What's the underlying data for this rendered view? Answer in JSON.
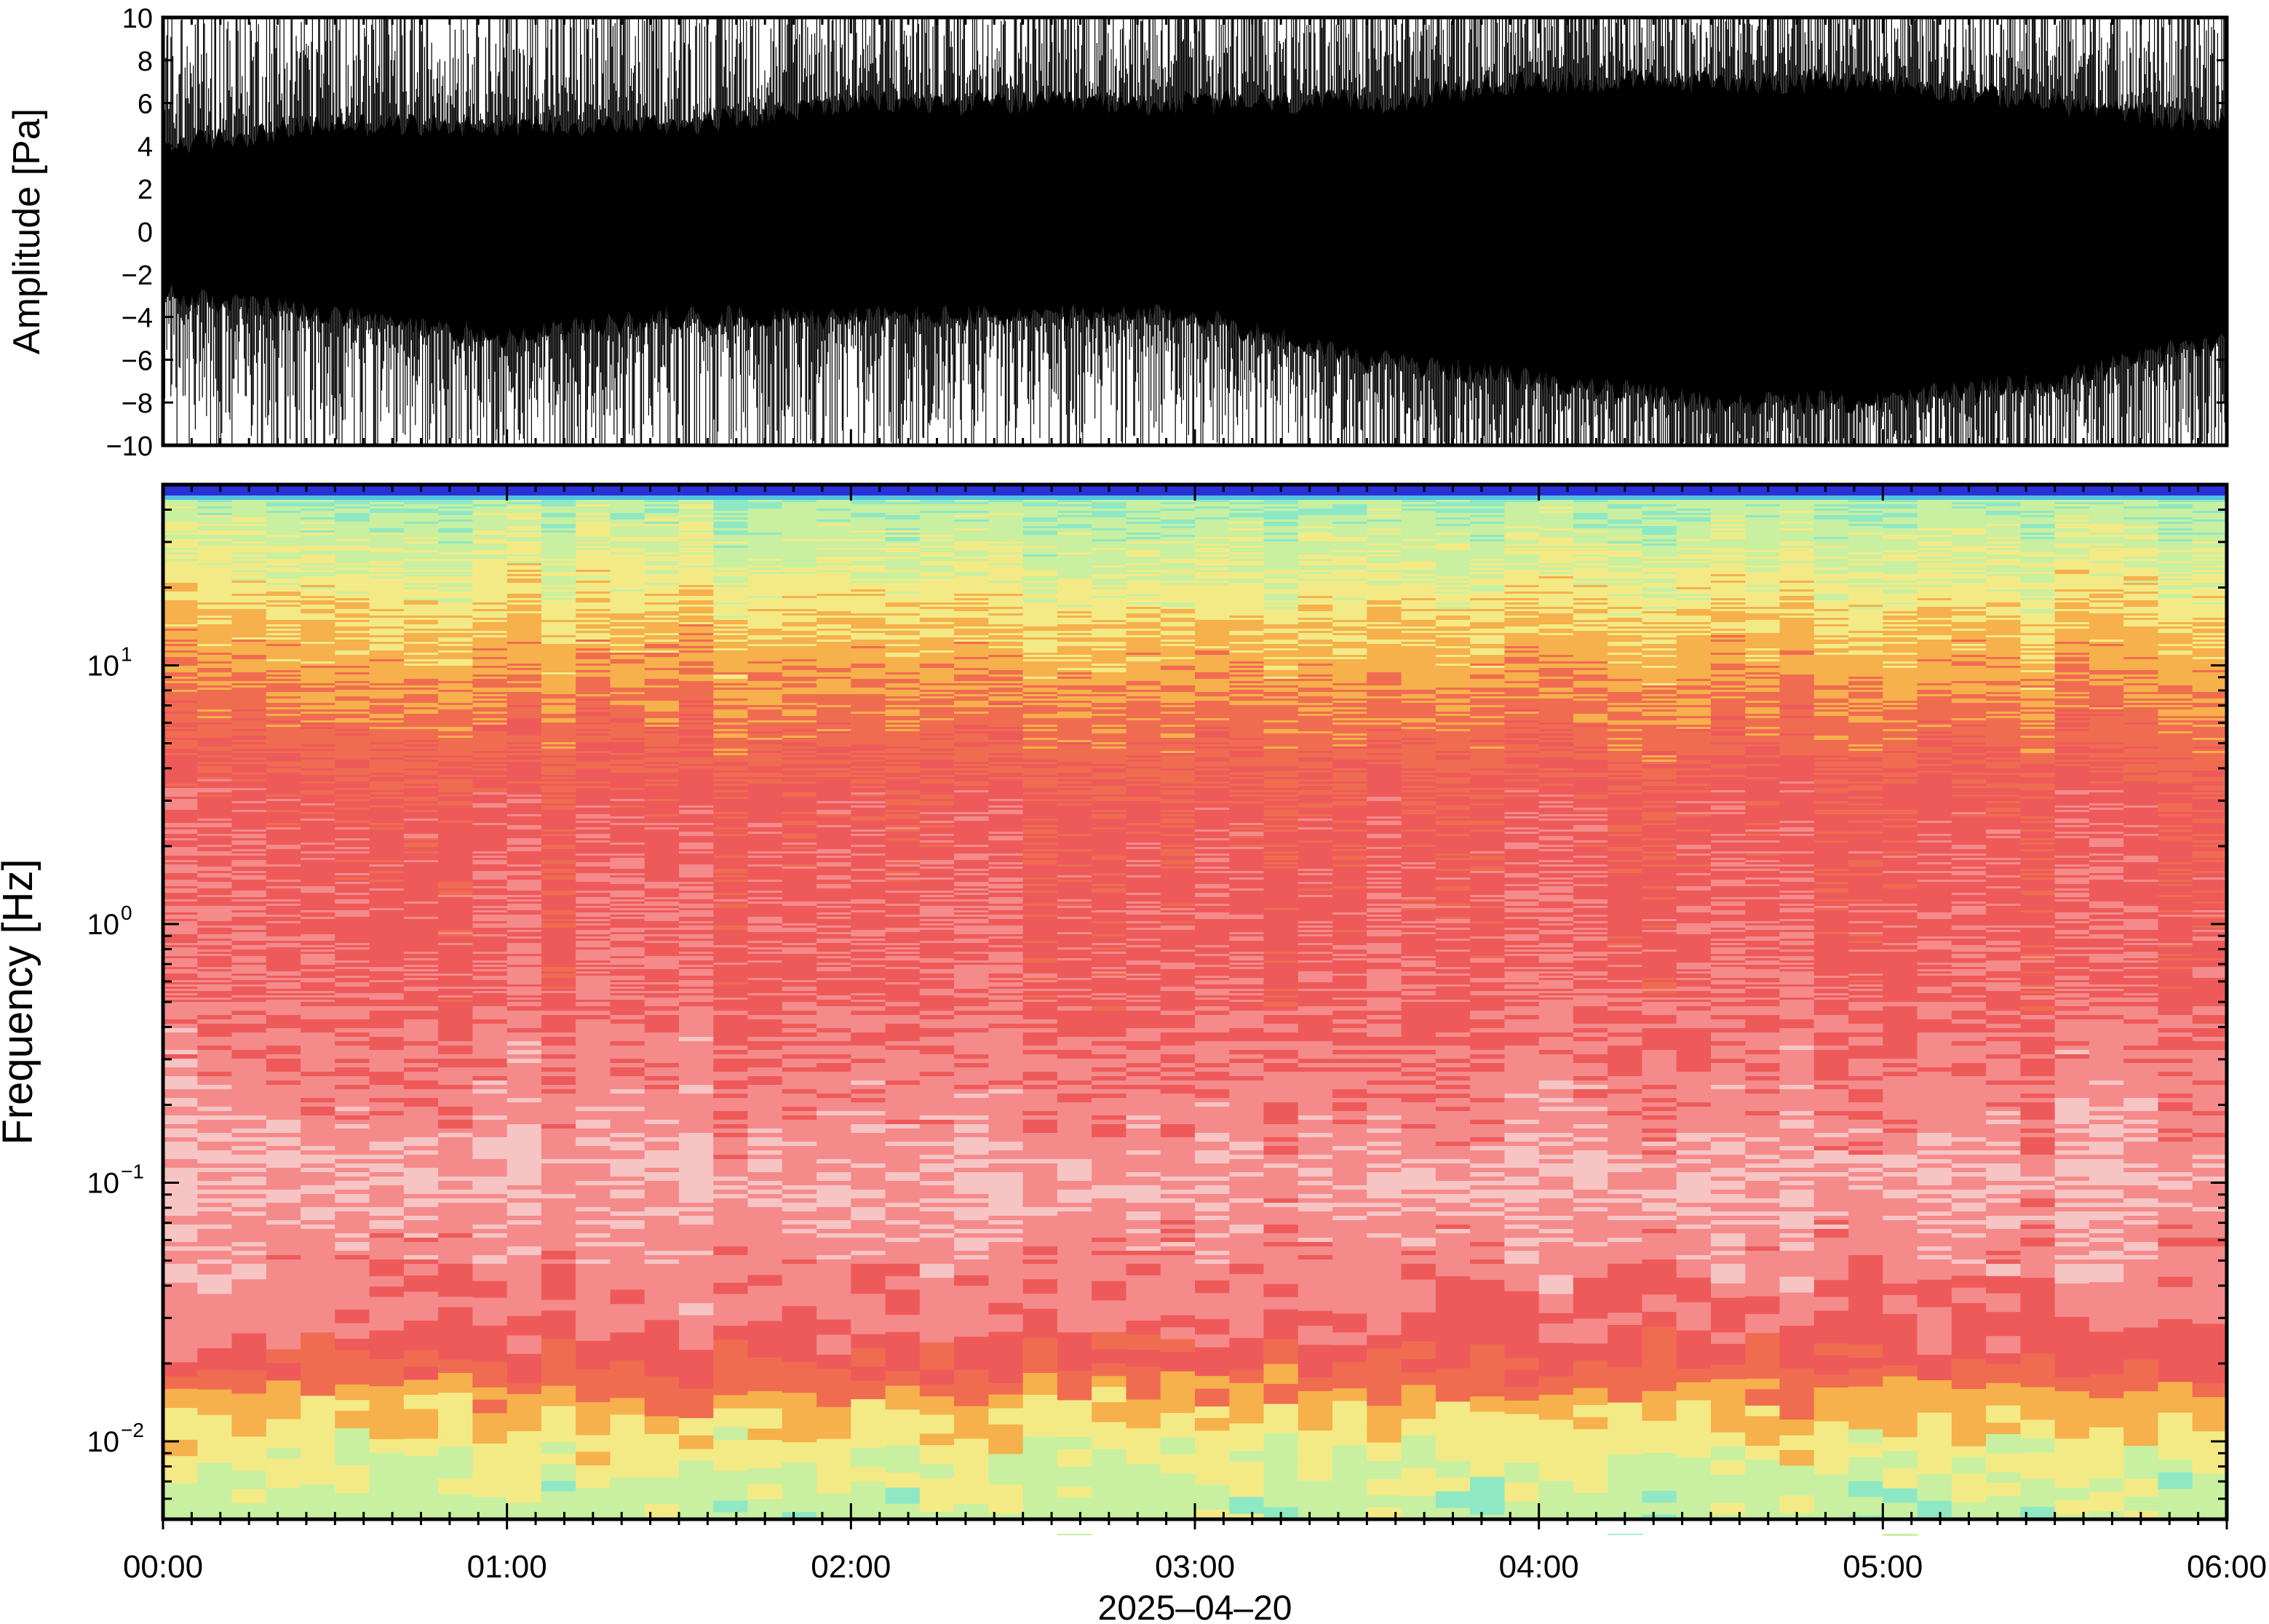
{
  "chart_data": [
    {
      "type": "line",
      "panel": "waveform",
      "ylabel": "Amplitude [Pa]",
      "ylim": [
        -10,
        10
      ],
      "yticks": [
        10,
        8,
        6,
        4,
        2,
        0,
        -2,
        -4,
        -6,
        -8,
        -10
      ],
      "ytick_labels": [
        "10",
        "8",
        "6",
        "4",
        "2",
        "0",
        "−2",
        "−4",
        "−6",
        "−8",
        "−10"
      ],
      "xlim": [
        "00:00",
        "06:00"
      ],
      "series": [
        {
          "color": "#000000",
          "envelope_note_hours": [
            0,
            0.5,
            1,
            1.5,
            2,
            2.5,
            3,
            3.5,
            4,
            4.5,
            5,
            5.5,
            6
          ],
          "upper_min": [
            4,
            5,
            5,
            5,
            6,
            6,
            6,
            6,
            7,
            7,
            7,
            6,
            5
          ],
          "lower_max": [
            -3,
            -4,
            -5,
            -4,
            -4,
            -4,
            -4,
            -6,
            -7,
            -8,
            -8,
            -7,
            -5
          ],
          "upper": 10,
          "lower": -10
        }
      ]
    },
    {
      "type": "heatmap",
      "panel": "spectrogram",
      "ylabel": "Frequency [Hz]",
      "yscale": "log",
      "ylim": [
        0.005,
        50
      ],
      "yticks": [
        0.01,
        0.1,
        1,
        10
      ],
      "ytick_labels": [
        {
          "base": "10",
          "exp": "−2"
        },
        {
          "base": "10",
          "exp": "−1"
        },
        {
          "base": "10",
          "exp": "0"
        },
        {
          "base": "10",
          "exp": "1"
        }
      ],
      "xlabel": "2025–04–20",
      "x_hours": [
        0,
        1,
        2,
        3,
        4,
        5,
        6
      ],
      "xtick_labels": [
        "00:00",
        "01:00",
        "02:00",
        "03:00",
        "04:00",
        "05:00",
        "06:00"
      ],
      "colormap": [
        "#2a2fd6",
        "#4fc3e0",
        "#8ee8c4",
        "#c8f0a0",
        "#f3ea86",
        "#f6b04c",
        "#f06c50",
        "#ee5a5a",
        "#f58a8a",
        "#f7c4c4"
      ],
      "frequency_profile_hz": [
        0.006,
        0.01,
        0.015,
        0.02,
        0.03,
        0.05,
        0.1,
        0.2,
        0.5,
        1,
        3,
        10,
        25,
        45,
        50
      ],
      "frequency_profile_level": [
        3.0,
        3.8,
        5.0,
        6.5,
        7.5,
        8.0,
        8.6,
        8.0,
        7.4,
        7.3,
        7.0,
        5.2,
        3.6,
        2.6,
        0.0
      ]
    }
  ]
}
